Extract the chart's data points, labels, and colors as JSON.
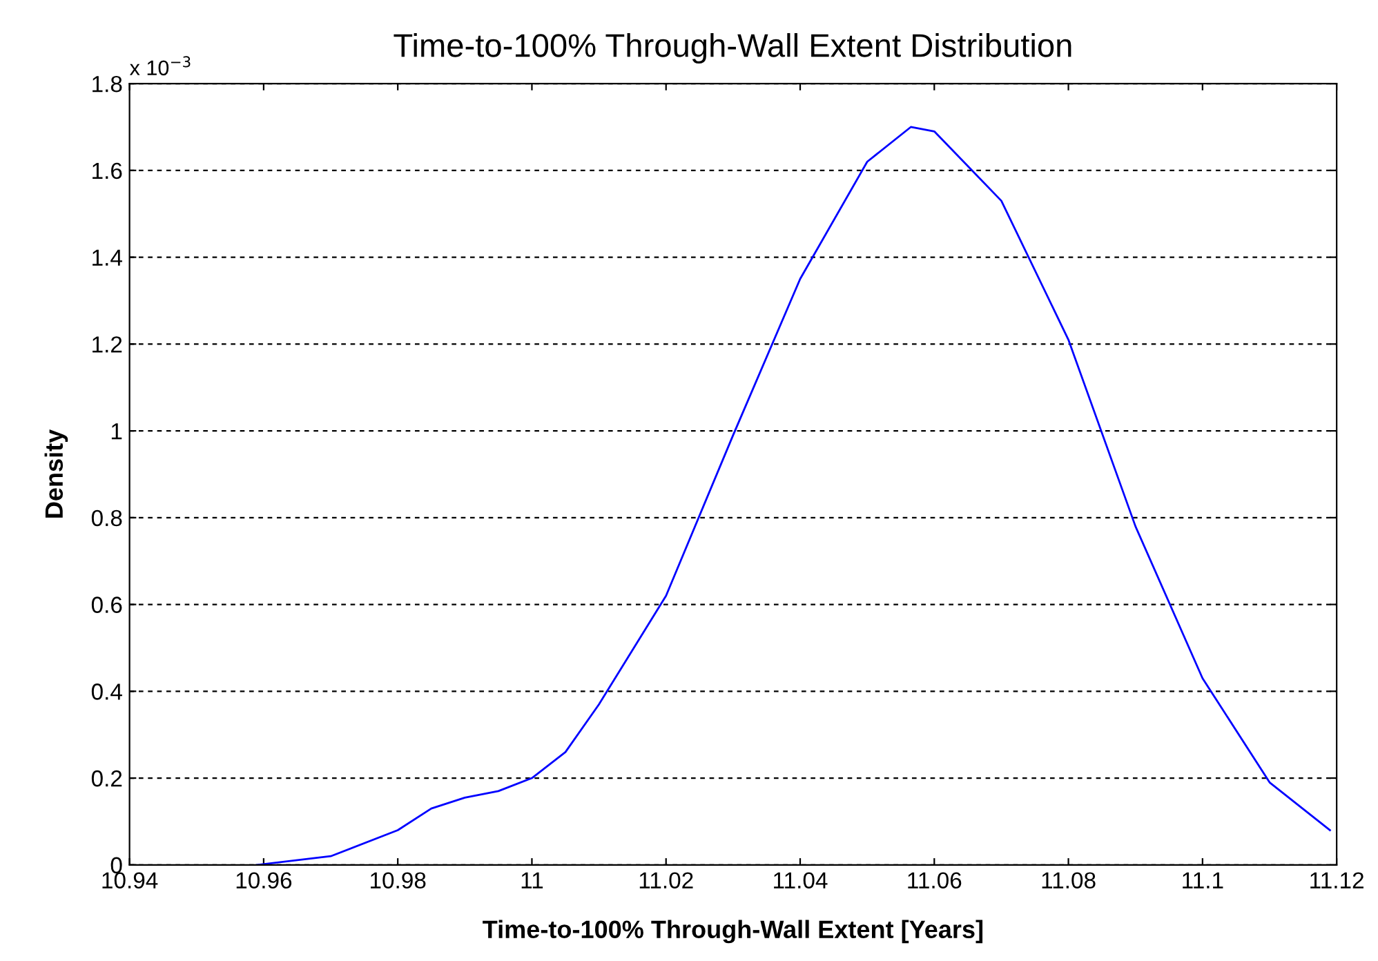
{
  "chart_data": {
    "type": "line",
    "title": "Time-to-100% Through-Wall Extent Distribution",
    "xlabel": "Time-to-100% Through-Wall Extent [Years]",
    "ylabel": "Density",
    "annotations": [
      "x 10$^{−3}$"
    ],
    "x": [
      10.959,
      10.97,
      10.98,
      10.985,
      10.99,
      10.995,
      11.0,
      11.005,
      11.01,
      11.02,
      11.03,
      11.04,
      11.05,
      11.0565,
      11.06,
      11.07,
      11.08,
      11.09,
      11.1,
      11.11,
      11.119
    ],
    "series": [
      {
        "color": "#0000ff",
        "values": [
          0.0,
          0.02,
          0.08,
          0.13,
          0.155,
          0.17,
          0.2,
          0.26,
          0.37,
          0.62,
          0.99,
          1.35,
          1.62,
          1.7,
          1.69,
          1.53,
          1.21,
          0.78,
          0.43,
          0.19,
          0.08
        ]
      }
    ],
    "xlim": [
      10.94,
      11.12
    ],
    "xticks": [
      10.94,
      10.96,
      10.98,
      11,
      11.02,
      11.04,
      11.06,
      11.08,
      11.1,
      11.12
    ],
    "ylim": [
      0,
      1.8
    ],
    "yticks": [
      0,
      0.2,
      0.4,
      0.6,
      0.8,
      1,
      1.2,
      1.4,
      1.6,
      1.8
    ],
    "grid": "y",
    "marker": "none",
    "line_style": "solid",
    "legend": false
  }
}
